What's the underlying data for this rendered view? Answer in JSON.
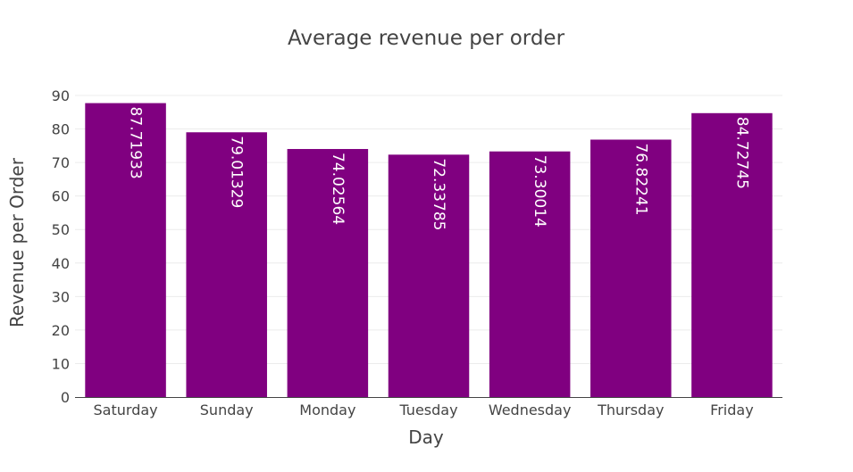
{
  "chart_data": {
    "type": "bar",
    "title": "Average revenue per order",
    "xlabel": "Day",
    "ylabel": "Revenue per Order",
    "categories": [
      "Saturday",
      "Sunday",
      "Monday",
      "Tuesday",
      "Wednesday",
      "Thursday",
      "Friday"
    ],
    "values": [
      87.71933,
      79.01329,
      74.02564,
      72.33785,
      73.30014,
      76.82241,
      84.72745
    ],
    "value_labels": [
      "87.71933",
      "79.01329",
      "74.02564",
      "72.33785",
      "73.30014",
      "76.82241",
      "84.72745"
    ],
    "ylim": [
      0,
      90
    ],
    "yticks": [
      0,
      10,
      20,
      30,
      40,
      50,
      60,
      70,
      80,
      90
    ],
    "ytick_labels": [
      "0",
      "10",
      "20",
      "30",
      "40",
      "50",
      "60",
      "70",
      "80",
      "90"
    ],
    "grid": true,
    "legend": "none",
    "bar_color": "#800080",
    "data_label_color": "#ffffff"
  }
}
